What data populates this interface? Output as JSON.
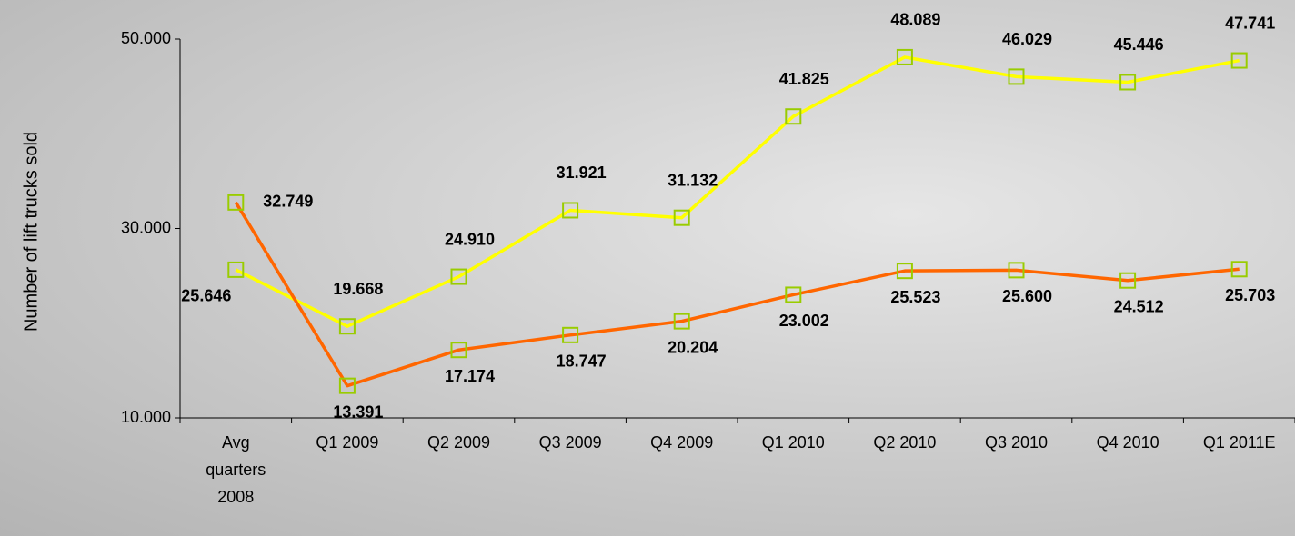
{
  "chart_data": {
    "type": "line",
    "y_label": "Number of lift trucks sold",
    "categories": [
      "Avg quarters 2008",
      "Q1 2009",
      "Q2 2009",
      "Q3 2009",
      "Q4 2009",
      "Q1 2010",
      "Q2 2010",
      "Q3 2010",
      "Q4 2010",
      "Q1 2011E"
    ],
    "series": [
      {
        "color": "#ffff00",
        "marker_color": "#99cc00",
        "values": [
          25646,
          19668,
          24910,
          31921,
          31132,
          41825,
          48089,
          46029,
          45446,
          47741
        ],
        "value_labels": [
          "25.646",
          "19.668",
          "24.910",
          "31.921",
          "31.132",
          "41.825",
          "48.089",
          "46.029",
          "45.446",
          "47.741"
        ]
      },
      {
        "color": "#ff6600",
        "marker_color": "#99cc00",
        "values": [
          32749,
          13391,
          17174,
          18747,
          20204,
          23002,
          25523,
          25600,
          24512,
          25703
        ],
        "value_labels": [
          "32.749",
          "13.391",
          "17.174",
          "18.747",
          "20.204",
          "23.002",
          "25.523",
          "25.600",
          "24.512",
          "25.703"
        ]
      }
    ],
    "ylim": [
      10000,
      50000
    ],
    "yticks": [
      {
        "value": 10000,
        "label": "10.000"
      },
      {
        "value": 30000,
        "label": "30.000"
      },
      {
        "value": 50000,
        "label": "50.000"
      }
    ]
  }
}
